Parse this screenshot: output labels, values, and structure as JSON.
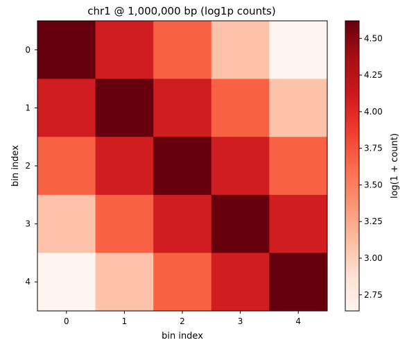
{
  "chart_data": {
    "type": "heatmap",
    "title": "chr1 @ 1,000,000 bp (log1p counts)",
    "xlabel": "bin index",
    "ylabel": "bin index",
    "x_categories": [
      "0",
      "1",
      "2",
      "3",
      "4"
    ],
    "y_categories": [
      "0",
      "1",
      "2",
      "3",
      "4"
    ],
    "values": [
      [
        4.62,
        4.09,
        3.68,
        3.09,
        2.64
      ],
      [
        4.09,
        4.62,
        4.09,
        3.68,
        3.09
      ],
      [
        3.68,
        4.09,
        4.62,
        4.09,
        3.68
      ],
      [
        3.09,
        3.68,
        4.09,
        4.62,
        4.09
      ],
      [
        2.64,
        3.09,
        3.68,
        4.09,
        4.62
      ]
    ],
    "colormap": "Reds",
    "colorbar": {
      "label": "log(1 + count)",
      "min": 2.64,
      "max": 4.62,
      "ticks": [
        "2.75",
        "3.00",
        "3.25",
        "3.50",
        "3.75",
        "4.00",
        "4.25",
        "4.50"
      ]
    },
    "grid": false
  }
}
